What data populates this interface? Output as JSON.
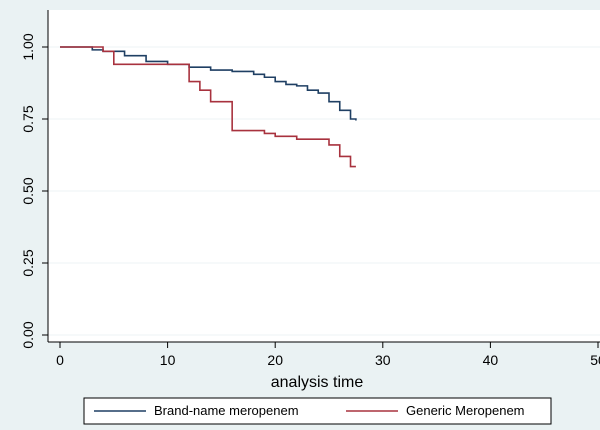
{
  "colors": {
    "background": "#eaf2f3",
    "plot_background": "#ffffff",
    "grid": "#eef3f4",
    "axis": "#000000"
  },
  "chart_data": {
    "type": "line",
    "title": "",
    "xlabel": "analysis time",
    "ylabel": "",
    "xlim": [
      0,
      50
    ],
    "ylim": [
      0,
      1
    ],
    "xticks": [
      0,
      10,
      20,
      30,
      40,
      50
    ],
    "xtick_labels": [
      "0",
      "10",
      "20",
      "30",
      "40",
      "50"
    ],
    "yticks": [
      0,
      0.25,
      0.5,
      0.75,
      1
    ],
    "ytick_labels": [
      "0.00",
      "0.25",
      "0.50",
      "0.75",
      "1.00"
    ],
    "grid": true,
    "legend_position": "bottom",
    "step": true,
    "series": [
      {
        "name": "Brand-name meropenem",
        "color": "#1f3f63",
        "x": [
          0,
          3,
          4,
          6,
          8,
          10,
          12,
          14,
          16,
          18,
          19,
          20,
          21,
          22,
          23,
          24,
          25,
          26,
          27,
          27.5
        ],
        "y": [
          1.0,
          0.99,
          0.985,
          0.97,
          0.95,
          0.94,
          0.93,
          0.92,
          0.915,
          0.905,
          0.895,
          0.88,
          0.87,
          0.865,
          0.85,
          0.84,
          0.81,
          0.78,
          0.75,
          0.745
        ]
      },
      {
        "name": "Generic Meropenem",
        "color": "#a8323e",
        "x": [
          0,
          4,
          5,
          12,
          13,
          14,
          16,
          19,
          20,
          22,
          25,
          26,
          27,
          27.5
        ],
        "y": [
          1.0,
          0.985,
          0.94,
          0.88,
          0.85,
          0.81,
          0.71,
          0.7,
          0.69,
          0.68,
          0.66,
          0.62,
          0.585,
          0.585
        ]
      }
    ]
  }
}
